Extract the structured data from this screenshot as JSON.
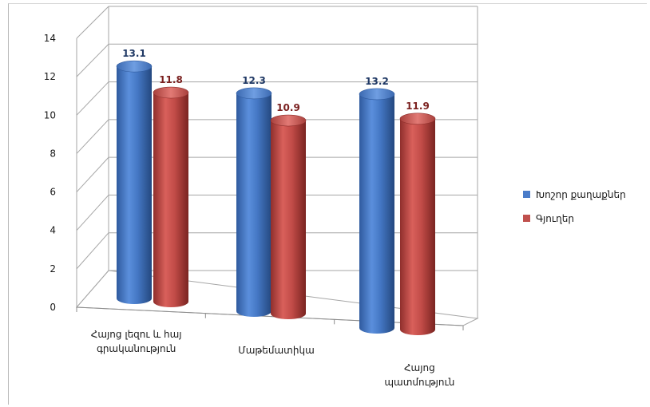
{
  "chart_data": {
    "type": "bar",
    "title": "",
    "xlabel": "",
    "ylabel": "",
    "ylim": [
      0,
      14
    ],
    "yticks": [
      0,
      2,
      4,
      6,
      8,
      10,
      12,
      14
    ],
    "grid": true,
    "legend_position": "right",
    "categories": [
      [
        "Հայոց լեզու և հայ",
        "գրականություն"
      ],
      [
        "Մաթեմատիկա"
      ],
      [
        "Հայոց",
        "պատմություն"
      ]
    ],
    "series": [
      {
        "name": "Խոշոր քաղաքներ",
        "values": [
          13.1,
          12.3,
          13.2
        ],
        "labels": [
          "13.1",
          "12.3",
          "13.2"
        ],
        "color": "#4a7cc9",
        "label_color": "#1f3864"
      },
      {
        "name": "Գյուղեր",
        "values": [
          11.8,
          10.9,
          11.9
        ],
        "labels": [
          "11.8",
          "10.9",
          "11.9"
        ],
        "color": "#c0504d",
        "label_color": "#7b2120"
      }
    ]
  }
}
